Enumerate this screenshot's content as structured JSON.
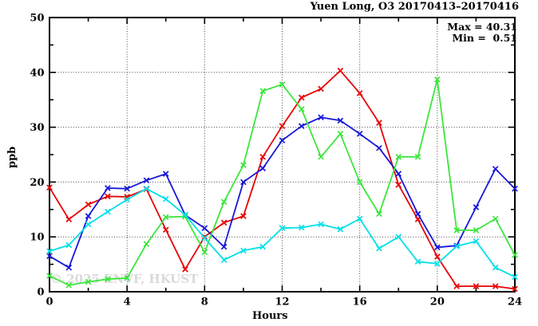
{
  "header": {
    "title": "Yuen Long, O3 20170413–20170416"
  },
  "annotation": {
    "max_label": "Max = 40.31",
    "min_label": "Min =  0.51"
  },
  "watermark": "© 2025 ENVF, HKUST",
  "colors": {
    "frame": "#000000",
    "grid": "#444444",
    "watermark": "#d9d9d9"
  },
  "chart_data": {
    "type": "line",
    "title": "Yuen Long, O3 20170413–20170416",
    "xlabel": "Hours",
    "ylabel": "ppb",
    "xlim": [
      0,
      24
    ],
    "ylim": [
      0,
      50
    ],
    "x_major_ticks": [
      0,
      4,
      8,
      12,
      16,
      20,
      24
    ],
    "x_minor_step": 2,
    "y_major_ticks": [
      0,
      10,
      20,
      30,
      40,
      50
    ],
    "y_minor_step": 5,
    "grid": "dotted, vertical at x=4,8,12,16,20; horizontal at y=10,20,30,40",
    "legend": "none (4 unlabeled colored day-series)",
    "marker": "x-cross",
    "x": [
      0,
      1,
      2,
      3,
      4,
      5,
      6,
      7,
      8,
      9,
      10,
      11,
      12,
      13,
      14,
      15,
      16,
      17,
      18,
      19,
      20,
      21,
      22,
      23,
      24
    ],
    "series": [
      {
        "name": "series-red",
        "color": "#e80000",
        "values": [
          19.0,
          13.2,
          15.9,
          17.4,
          17.3,
          18.7,
          11.3,
          4.1,
          10.0,
          12.6,
          13.8,
          24.6,
          30.2,
          35.4,
          37.0,
          40.31,
          36.2,
          30.8,
          19.5,
          13.2,
          6.4,
          1.0,
          1.0,
          1.0,
          0.51
        ]
      },
      {
        "name": "series-blue",
        "color": "#1717d9",
        "values": [
          6.5,
          4.4,
          13.8,
          18.9,
          18.8,
          20.3,
          21.5,
          14.0,
          11.6,
          8.2,
          20.0,
          22.5,
          27.6,
          30.2,
          31.8,
          31.2,
          28.8,
          26.2,
          21.5,
          14.2,
          8.1,
          8.4,
          15.4,
          22.4,
          18.8
        ]
      },
      {
        "name": "series-green",
        "color": "#3ce63c",
        "values": [
          2.9,
          1.2,
          1.8,
          2.3,
          2.5,
          8.7,
          13.6,
          13.7,
          7.2,
          16.4,
          23.1,
          36.6,
          37.8,
          33.3,
          24.6,
          28.8,
          20.0,
          14.2,
          24.6,
          24.6,
          38.7,
          11.2,
          11.2,
          13.3,
          6.7
        ]
      },
      {
        "name": "series-cyan",
        "color": "#00e0e8",
        "values": [
          7.4,
          8.5,
          12.3,
          14.6,
          16.8,
          18.8,
          16.9,
          14.0,
          9.8,
          5.8,
          7.5,
          8.2,
          11.6,
          11.7,
          12.3,
          11.4,
          13.3,
          7.9,
          10.0,
          5.5,
          5.1,
          8.3,
          9.2,
          4.4,
          2.7
        ]
      }
    ],
    "stats": {
      "max": 40.31,
      "min": 0.51
    }
  }
}
